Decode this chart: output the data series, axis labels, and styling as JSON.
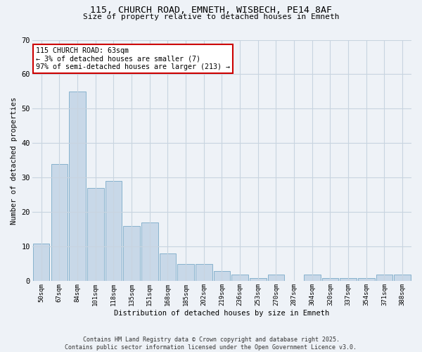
{
  "title1": "115, CHURCH ROAD, EMNETH, WISBECH, PE14 8AF",
  "title2": "Size of property relative to detached houses in Emneth",
  "xlabel": "Distribution of detached houses by size in Emneth",
  "ylabel": "Number of detached properties",
  "categories": [
    "50sqm",
    "67sqm",
    "84sqm",
    "101sqm",
    "118sqm",
    "135sqm",
    "151sqm",
    "168sqm",
    "185sqm",
    "202sqm",
    "219sqm",
    "236sqm",
    "253sqm",
    "270sqm",
    "287sqm",
    "304sqm",
    "320sqm",
    "337sqm",
    "354sqm",
    "371sqm",
    "388sqm"
  ],
  "values": [
    11,
    34,
    55,
    27,
    29,
    16,
    17,
    8,
    5,
    5,
    3,
    2,
    1,
    2,
    0,
    2,
    1,
    1,
    1,
    2,
    2
  ],
  "bar_color": "#c8d8e8",
  "bar_edge_color": "#7aaac8",
  "annotation_text": "115 CHURCH ROAD: 63sqm\n← 3% of detached houses are smaller (7)\n97% of semi-detached houses are larger (213) →",
  "annotation_box_color": "#ffffff",
  "annotation_box_edgecolor": "#cc0000",
  "ylim": [
    0,
    70
  ],
  "yticks": [
    0,
    10,
    20,
    30,
    40,
    50,
    60,
    70
  ],
  "grid_color": "#c8d4e0",
  "background_color": "#eef2f7",
  "footer": "Contains HM Land Registry data © Crown copyright and database right 2025.\nContains public sector information licensed under the Open Government Licence v3.0."
}
